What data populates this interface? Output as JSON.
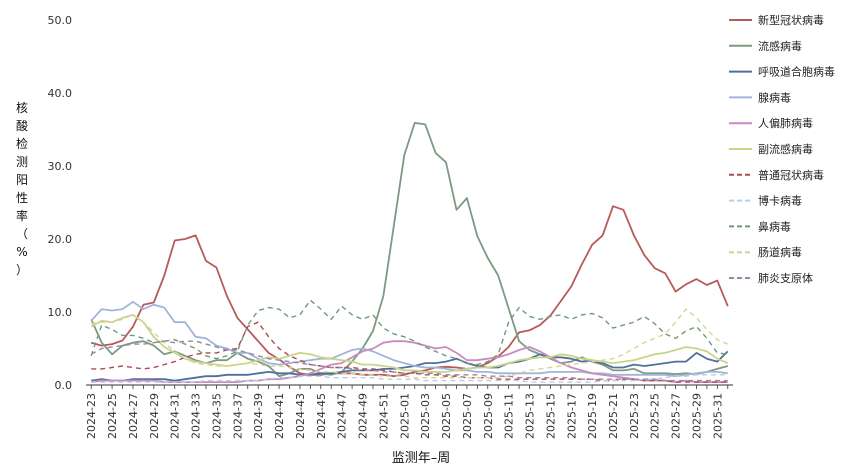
{
  "chart_data": {
    "type": "line",
    "title": "",
    "xlabel": "监测年–周",
    "ylabel": "核酸检测阳性率（%）",
    "ylim": [
      0,
      50
    ],
    "yticks": [
      "0.0",
      "10.0",
      "20.0",
      "30.0",
      "40.0",
      "50.0"
    ],
    "grid": false,
    "legend": "right",
    "categories": [
      "2024-23",
      "2024-24",
      "2024-25",
      "2024-26",
      "2024-27",
      "2024-28",
      "2024-29",
      "2024-30",
      "2024-31",
      "2024-32",
      "2024-33",
      "2024-34",
      "2024-35",
      "2024-36",
      "2024-37",
      "2024-38",
      "2024-39",
      "2024-40",
      "2024-41",
      "2024-42",
      "2024-43",
      "2024-44",
      "2024-45",
      "2024-46",
      "2024-47",
      "2024-48",
      "2024-49",
      "2024-50",
      "2024-51",
      "2024-52",
      "2025-01",
      "2025-02",
      "2025-03",
      "2025-04",
      "2025-05",
      "2025-06",
      "2025-07",
      "2025-08",
      "2025-09",
      "2025-10",
      "2025-11",
      "2025-12",
      "2025-13",
      "2025-14",
      "2025-15",
      "2025-16",
      "2025-17",
      "2025-18",
      "2025-19",
      "2025-20",
      "2025-21",
      "2025-22",
      "2025-23",
      "2025-24",
      "2025-25",
      "2025-26",
      "2025-27",
      "2025-28",
      "2025-29",
      "2025-30",
      "2025-31",
      "2025-32"
    ],
    "xtick_labels": [
      "2024-23",
      "2024-25",
      "2024-27",
      "2024-29",
      "2024-31",
      "2024-33",
      "2024-35",
      "2024-37",
      "2024-39",
      "2024-41",
      "2024-43",
      "2024-45",
      "2024-47",
      "2024-49",
      "2024-51",
      "2025-01",
      "2025-03",
      "2025-05",
      "2025-07",
      "2025-09",
      "2025-11",
      "2025-13",
      "2025-15",
      "2025-17",
      "2025-19",
      "2025-21",
      "2025-23",
      "2025-25",
      "2025-27",
      "2025-29",
      "2025-31"
    ],
    "series": [
      {
        "name": "新型冠状病毒",
        "color": "#b85a5a",
        "dash": false,
        "values": [
          5.8,
          5.4,
          5.6,
          6.1,
          8,
          11,
          11.3,
          15,
          19.8,
          20,
          20.5,
          17,
          16.1,
          12.2,
          9.2,
          7.6,
          6,
          4.4,
          3.5,
          2.5,
          1.6,
          1.4,
          1.4,
          1.6,
          1.6,
          1.6,
          1.4,
          1.4,
          1.4,
          1.2,
          1.4,
          1.8,
          2,
          2.4,
          2.5,
          2.4,
          2.2,
          2.4,
          3,
          3.9,
          5.2,
          7.2,
          7.5,
          8.2,
          9.5,
          11.5,
          13.5,
          16.5,
          19.2,
          20.5,
          24.5,
          24,
          20.5,
          17.8,
          16,
          15.3,
          12.8,
          13.8,
          14.5,
          13.7,
          14.3,
          10.8
        ]
      },
      {
        "name": "流感病毒",
        "color": "#7c9a82",
        "dash": false,
        "values": [
          9,
          5.8,
          4.2,
          5.4,
          5.8,
          6,
          5.4,
          4.2,
          4.6,
          4,
          3.4,
          3,
          3.4,
          3.4,
          4.4,
          3.6,
          3.2,
          2.6,
          1.2,
          1.6,
          2.2,
          2.2,
          1.6,
          1.4,
          1.8,
          3.2,
          5,
          7.4,
          12.2,
          21.8,
          31.5,
          35.9,
          35.7,
          31.8,
          30.5,
          24,
          25.6,
          20.4,
          17.4,
          15,
          10.5,
          6,
          4.8,
          4.2,
          3.6,
          3,
          3.2,
          3.8,
          3.2,
          2.8,
          2,
          2,
          2.2,
          1.6,
          1.6,
          1.6,
          1.5,
          1.6,
          1.5,
          1.8,
          2.2,
          2.6
        ]
      },
      {
        "name": "呼吸道合胞病毒",
        "color": "#4f6f9c",
        "dash": false,
        "values": [
          0.6,
          0.8,
          0.6,
          0.6,
          0.8,
          0.8,
          0.8,
          0.8,
          0.6,
          0.8,
          1,
          1.2,
          1.2,
          1.4,
          1.4,
          1.4,
          1.6,
          1.8,
          1.6,
          1.6,
          1.4,
          1.4,
          1.6,
          1.6,
          1.8,
          2,
          2,
          2,
          2.2,
          2.2,
          2.4,
          2.6,
          3,
          3,
          3.2,
          3.6,
          3,
          2.6,
          2.4,
          2.4,
          3,
          3.2,
          3.6,
          4.2,
          3.8,
          3.8,
          3.6,
          3.2,
          3.4,
          3,
          2.4,
          2.4,
          2.8,
          2.6,
          2.8,
          3,
          3.2,
          3.2,
          4.4,
          3.6,
          3.2,
          4.6
        ]
      },
      {
        "name": "腺病毒",
        "color": "#9fb6d9",
        "dash": false,
        "values": [
          8.8,
          10.4,
          10.2,
          10.4,
          11.4,
          10.4,
          11,
          10.6,
          8.6,
          8.6,
          6.6,
          6.4,
          5.4,
          5,
          4.4,
          4.4,
          3.6,
          3,
          2.8,
          3,
          3.2,
          3.4,
          3.6,
          3.6,
          4.2,
          4.8,
          5,
          4.6,
          4,
          3.4,
          3,
          2.6,
          2.4,
          2.4,
          2.2,
          2,
          2,
          1.8,
          1.8,
          1.6,
          1.6,
          1.6,
          1.6,
          1.6,
          1.8,
          1.8,
          1.8,
          1.8,
          1.6,
          1.6,
          1.4,
          1.4,
          1.4,
          1.4,
          1.4,
          1.4,
          1.2,
          1.4,
          1.6,
          1.8,
          1.8,
          1.6
        ]
      },
      {
        "name": "人偏肺病毒",
        "color": "#c98bbf",
        "dash": false,
        "values": [
          0.4,
          0.6,
          0.6,
          0.6,
          0.6,
          0.6,
          0.6,
          0.4,
          0.4,
          0.4,
          0.4,
          0.4,
          0.4,
          0.4,
          0.4,
          0.6,
          0.6,
          0.8,
          0.8,
          1,
          1.2,
          1.6,
          2.2,
          2.8,
          3,
          3.8,
          4.6,
          5,
          5.8,
          6,
          6,
          5.8,
          5.4,
          5,
          5.2,
          4.4,
          3.4,
          3.4,
          3.6,
          3.8,
          4.2,
          4.8,
          5.2,
          4.6,
          3.8,
          3,
          2.4,
          2,
          1.6,
          1.4,
          1.2,
          1,
          0.8,
          0.6,
          0.6,
          0.6,
          0.4,
          0.6,
          0.4,
          0.4,
          0.4,
          0.4
        ]
      },
      {
        "name": "副流感病毒",
        "color": "#c9d48a",
        "dash": false,
        "values": [
          8,
          8.8,
          8.6,
          9.2,
          9.6,
          8.6,
          6.6,
          5.2,
          4.4,
          3.6,
          3.2,
          3,
          2.8,
          2.6,
          2.8,
          3,
          3.4,
          3.8,
          3.6,
          4,
          4.4,
          4.2,
          3.8,
          3.6,
          3.4,
          3.2,
          2.8,
          2.8,
          2.6,
          2.4,
          2,
          2,
          1.8,
          1.8,
          1.8,
          2,
          2.2,
          2.4,
          2.4,
          2.6,
          3,
          3.4,
          3.6,
          3.8,
          3.8,
          4.2,
          4,
          3.6,
          3.4,
          3.2,
          3,
          3.2,
          3.4,
          3.8,
          4.2,
          4.4,
          4.8,
          5.2,
          5,
          4.6,
          3.6,
          3
        ]
      },
      {
        "name": "普通冠状病毒",
        "color": "#b04a4a",
        "dash": true,
        "values": [
          2.2,
          2.2,
          2.4,
          2.6,
          2.4,
          2.2,
          2.4,
          2.8,
          3.2,
          3.8,
          4.2,
          4.4,
          4.4,
          4.8,
          5,
          8,
          8.6,
          6.6,
          5,
          4,
          3.4,
          2.8,
          2.6,
          2.4,
          2.4,
          2.4,
          2.2,
          2.2,
          2,
          1.8,
          1.6,
          1.6,
          1.4,
          1.4,
          1.2,
          1.2,
          1,
          1,
          1,
          0.8,
          0.8,
          0.8,
          0.8,
          0.8,
          0.8,
          0.8,
          0.8,
          0.8,
          0.8,
          0.6,
          0.6,
          0.8,
          0.8,
          0.6,
          0.6,
          0.6,
          0.4,
          0.4,
          0.4,
          0.4,
          0.4,
          0.4
        ]
      },
      {
        "name": "博卡病毒",
        "color": "#b8cde6",
        "dash": true,
        "values": [
          0.4,
          0.4,
          0.4,
          0.4,
          0.4,
          0.4,
          0.4,
          0.4,
          0.4,
          0.4,
          0.4,
          0.6,
          0.6,
          0.6,
          0.6,
          0.6,
          0.6,
          0.8,
          1,
          1,
          1.2,
          1.2,
          1.2,
          1,
          1,
          1,
          1,
          1,
          0.8,
          0.8,
          0.8,
          0.8,
          0.6,
          0.6,
          0.6,
          0.6,
          0.6,
          0.6,
          0.6,
          0.6,
          0.6,
          0.6,
          0.4,
          0.4,
          0.4,
          0.4,
          0.4,
          0.4,
          0.4,
          0.6,
          0.6,
          0.6,
          0.6,
          0.8,
          0.8,
          1,
          1.2,
          1.2,
          1.4,
          1.4,
          1.4,
          1.4
        ]
      },
      {
        "name": "鼻病毒",
        "color": "#6f9a78",
        "dash": true,
        "values": [
          4,
          8.2,
          7.6,
          6.8,
          6.8,
          6.4,
          5.8,
          6,
          6.2,
          5.6,
          5,
          4,
          3.6,
          4,
          4.6,
          8.2,
          10.2,
          10.6,
          10.4,
          9.2,
          9.6,
          11.6,
          10.4,
          9,
          10.8,
          9.6,
          9,
          9.6,
          7.8,
          7,
          6.6,
          6,
          5.2,
          4.6,
          4,
          3.6,
          3,
          2.8,
          3.2,
          4.2,
          8.6,
          10.6,
          9.4,
          9,
          9.4,
          9.6,
          9,
          9.6,
          9.8,
          9.2,
          7.8,
          8.2,
          8.6,
          9.4,
          8.4,
          7,
          6.4,
          7.4,
          8,
          6.4,
          4.4,
          4.2
        ]
      },
      {
        "name": "肠道病毒",
        "color": "#d8d496",
        "dash": true,
        "values": [
          8.4,
          8.6,
          8.6,
          9,
          9.6,
          8.6,
          7.2,
          5.8,
          4.6,
          3.6,
          3,
          2.8,
          2.6,
          2.6,
          2.8,
          3,
          2.8,
          2.6,
          2.6,
          2.4,
          2.2,
          2,
          1.8,
          1.8,
          1.6,
          1.6,
          1.4,
          1.4,
          1.2,
          1.2,
          1.2,
          1,
          1,
          1,
          1,
          1,
          1,
          1,
          1,
          1,
          1.2,
          1.6,
          2,
          2.2,
          2.4,
          2.6,
          2.8,
          3,
          3.2,
          3.4,
          3.6,
          4.2,
          5,
          5.8,
          6.4,
          7,
          8.6,
          10.4,
          9.2,
          7.6,
          6.2,
          5.6
        ]
      },
      {
        "name": "肺炎支原体",
        "color": "#9a86a6",
        "dash": true,
        "values": [
          4.2,
          5,
          5.2,
          5.4,
          5.6,
          5.6,
          5.8,
          6,
          5.8,
          6,
          6,
          5.6,
          5.2,
          4.8,
          4.8,
          4.4,
          4,
          3.6,
          3.4,
          3.2,
          3,
          2.8,
          2.6,
          2.4,
          2.4,
          2.2,
          2,
          2,
          1.8,
          1.8,
          1.6,
          1.6,
          1.6,
          1.6,
          1.4,
          1.4,
          1.4,
          1.4,
          1.2,
          1.2,
          1.2,
          1,
          1,
          1,
          1,
          1,
          1,
          0.8,
          0.8,
          0.8,
          0.8,
          0.8,
          0.8,
          0.8,
          0.8,
          0.6,
          0.6,
          0.6,
          0.6,
          0.6,
          0.6,
          0.6
        ]
      }
    ]
  }
}
